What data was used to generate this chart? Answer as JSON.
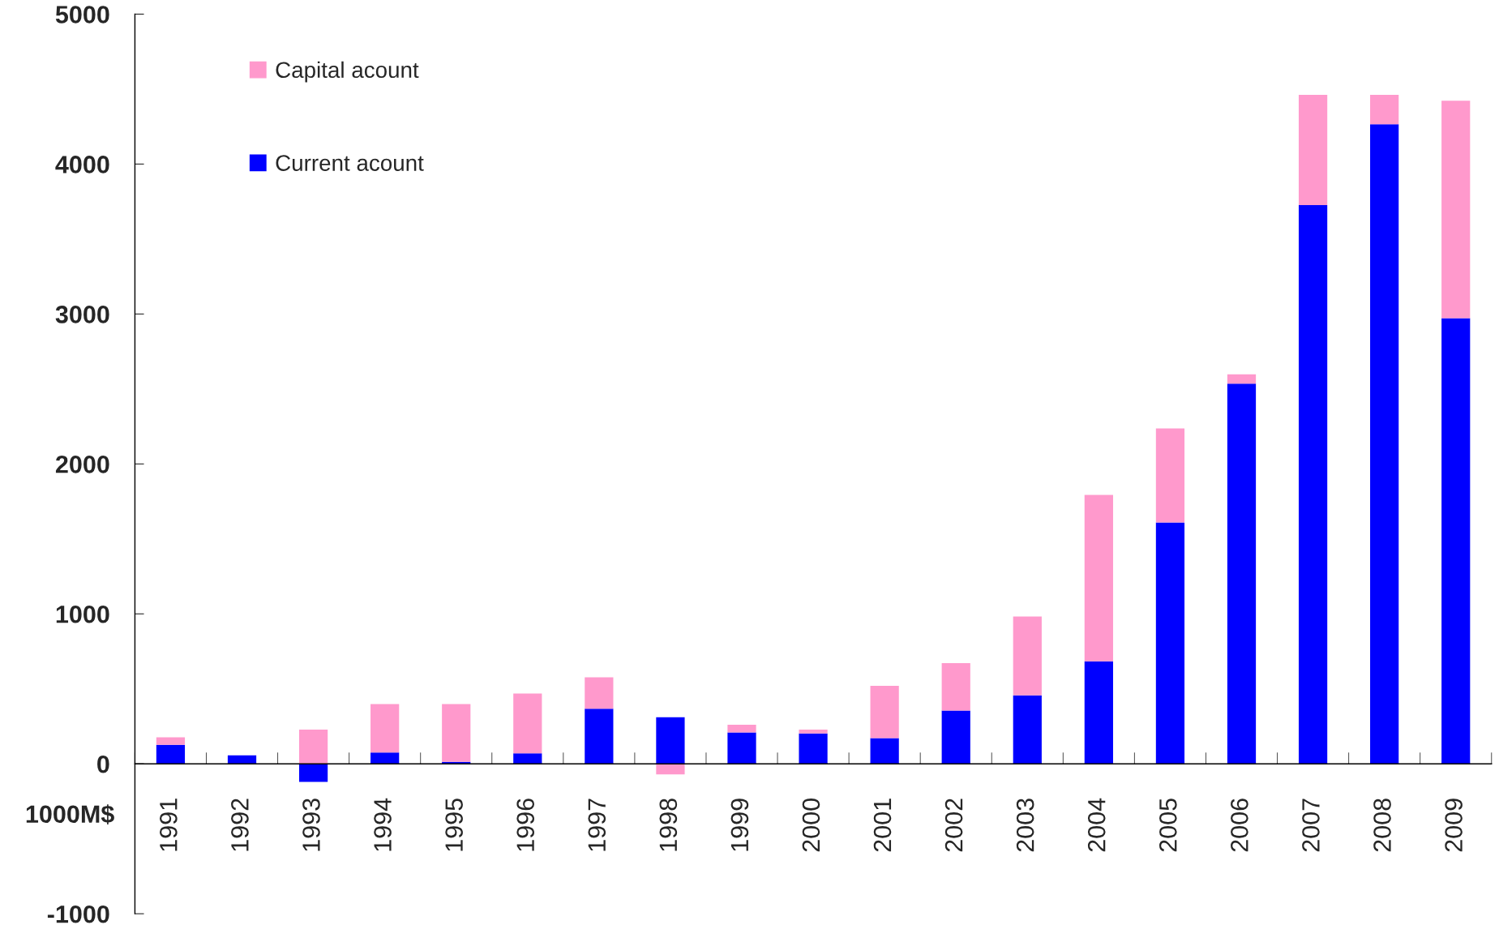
{
  "chart_data": {
    "type": "bar",
    "stacked": true,
    "ylabel": "1000M$",
    "categories": [
      "1991",
      "1992",
      "1993",
      "1994",
      "1995",
      "1996",
      "1997",
      "1998",
      "1999",
      "2000",
      "2001",
      "2002",
      "2003",
      "2004",
      "2005",
      "2006",
      "2007",
      "2008",
      "2009"
    ],
    "series": [
      {
        "name": "Current acount",
        "color": "#0000ff",
        "values": [
          127,
          57,
          -120,
          76,
          13,
          70,
          368,
          311,
          209,
          203,
          171,
          355,
          456,
          684,
          1610,
          2535,
          3726,
          4265,
          2972
        ]
      },
      {
        "name": "Capital acount",
        "color": "#ff99cc",
        "values": [
          50,
          0,
          228,
          323,
          386,
          399,
          209,
          -70,
          51,
          25,
          349,
          317,
          526,
          1109,
          627,
          63,
          735,
          196,
          1451
        ]
      }
    ],
    "ylim": [
      -1000,
      5000
    ],
    "yticks": [
      -1000,
      0,
      1000,
      2000,
      3000,
      4000,
      5000
    ],
    "legend": "top left",
    "grid": false
  }
}
